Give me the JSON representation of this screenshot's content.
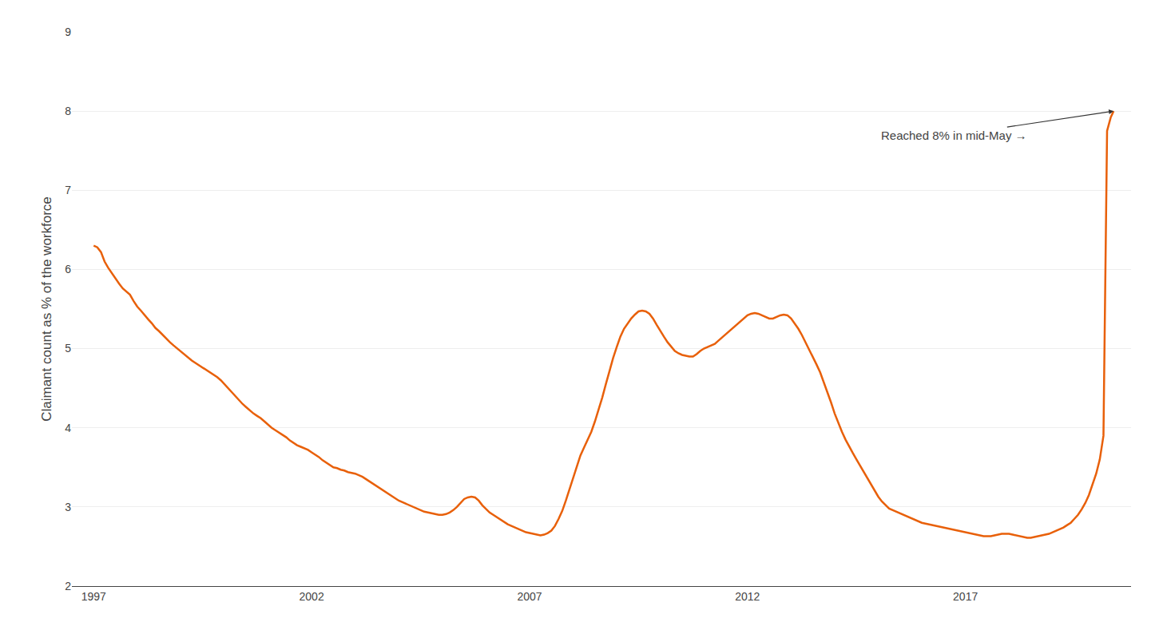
{
  "chart_data": {
    "type": "line",
    "ylabel": "Claimant count as % of the workforce",
    "color": "#E8600A",
    "grid": "y",
    "xlim": [
      1996.5,
      2020.8
    ],
    "xticks": [
      1997,
      2002,
      2007,
      2012,
      2017
    ],
    "ylim": [
      2,
      9
    ],
    "yticks": [
      2,
      3,
      4,
      5,
      6,
      7,
      8,
      9
    ],
    "annotations": [
      "Reached 8% in mid-May →"
    ],
    "x": [
      1997.0,
      1997.083,
      1997.167,
      1997.25,
      1997.333,
      1997.417,
      1997.5,
      1997.583,
      1997.667,
      1997.75,
      1997.833,
      1997.917,
      1998.0,
      1998.083,
      1998.167,
      1998.25,
      1998.333,
      1998.417,
      1998.5,
      1998.583,
      1998.667,
      1998.75,
      1998.833,
      1998.917,
      1999.0,
      1999.083,
      1999.167,
      1999.25,
      1999.333,
      1999.417,
      1999.5,
      1999.583,
      1999.667,
      1999.75,
      1999.833,
      1999.917,
      2000.0,
      2000.083,
      2000.167,
      2000.25,
      2000.333,
      2000.417,
      2000.5,
      2000.583,
      2000.667,
      2000.75,
      2000.833,
      2000.917,
      2001.0,
      2001.083,
      2001.167,
      2001.25,
      2001.333,
      2001.417,
      2001.5,
      2001.583,
      2001.667,
      2001.75,
      2001.833,
      2001.917,
      2002.0,
      2002.083,
      2002.167,
      2002.25,
      2002.333,
      2002.417,
      2002.5,
      2002.583,
      2002.667,
      2002.75,
      2002.833,
      2002.917,
      2003.0,
      2003.083,
      2003.167,
      2003.25,
      2003.333,
      2003.417,
      2003.5,
      2003.583,
      2003.667,
      2003.75,
      2003.833,
      2003.917,
      2004.0,
      2004.083,
      2004.167,
      2004.25,
      2004.333,
      2004.417,
      2004.5,
      2004.583,
      2004.667,
      2004.75,
      2004.833,
      2004.917,
      2005.0,
      2005.083,
      2005.167,
      2005.25,
      2005.333,
      2005.417,
      2005.5,
      2005.583,
      2005.667,
      2005.75,
      2005.833,
      2005.917,
      2006.0,
      2006.083,
      2006.167,
      2006.25,
      2006.333,
      2006.417,
      2006.5,
      2006.583,
      2006.667,
      2006.75,
      2006.833,
      2006.917,
      2007.0,
      2007.083,
      2007.167,
      2007.25,
      2007.333,
      2007.417,
      2007.5,
      2007.583,
      2007.667,
      2007.75,
      2007.833,
      2007.917,
      2008.0,
      2008.083,
      2008.167,
      2008.25,
      2008.333,
      2008.417,
      2008.5,
      2008.583,
      2008.667,
      2008.75,
      2008.833,
      2008.917,
      2009.0,
      2009.083,
      2009.167,
      2009.25,
      2009.333,
      2009.417,
      2009.5,
      2009.583,
      2009.667,
      2009.75,
      2009.833,
      2009.917,
      2010.0,
      2010.083,
      2010.167,
      2010.25,
      2010.333,
      2010.417,
      2010.5,
      2010.583,
      2010.667,
      2010.75,
      2010.833,
      2010.917,
      2011.0,
      2011.083,
      2011.167,
      2011.25,
      2011.333,
      2011.417,
      2011.5,
      2011.583,
      2011.667,
      2011.75,
      2011.833,
      2011.917,
      2012.0,
      2012.083,
      2012.167,
      2012.25,
      2012.333,
      2012.417,
      2012.5,
      2012.583,
      2012.667,
      2012.75,
      2012.833,
      2012.917,
      2013.0,
      2013.083,
      2013.167,
      2013.25,
      2013.333,
      2013.417,
      2013.5,
      2013.583,
      2013.667,
      2013.75,
      2013.833,
      2013.917,
      2014.0,
      2014.083,
      2014.167,
      2014.25,
      2014.333,
      2014.417,
      2014.5,
      2014.583,
      2014.667,
      2014.75,
      2014.833,
      2014.917,
      2015.0,
      2015.083,
      2015.167,
      2015.25,
      2015.333,
      2015.417,
      2015.5,
      2015.583,
      2015.667,
      2015.75,
      2015.833,
      2015.917,
      2016.0,
      2016.083,
      2016.167,
      2016.25,
      2016.333,
      2016.417,
      2016.5,
      2016.583,
      2016.667,
      2016.75,
      2016.833,
      2016.917,
      2017.0,
      2017.083,
      2017.167,
      2017.25,
      2017.333,
      2017.417,
      2017.5,
      2017.583,
      2017.667,
      2017.75,
      2017.833,
      2017.917,
      2018.0,
      2018.083,
      2018.167,
      2018.25,
      2018.333,
      2018.417,
      2018.5,
      2018.583,
      2018.667,
      2018.75,
      2018.833,
      2018.917,
      2019.0,
      2019.083,
      2019.167,
      2019.25,
      2019.333,
      2019.417,
      2019.5,
      2019.583,
      2019.667,
      2019.75,
      2019.833,
      2019.917,
      2020.0,
      2020.083,
      2020.167,
      2020.25,
      2020.333,
      2020.4
    ],
    "values": [
      6.3,
      6.28,
      6.22,
      6.1,
      6.02,
      5.95,
      5.88,
      5.82,
      5.76,
      5.72,
      5.68,
      5.6,
      5.53,
      5.48,
      5.42,
      5.37,
      5.32,
      5.26,
      5.22,
      5.17,
      5.13,
      5.08,
      5.04,
      5.0,
      4.96,
      4.92,
      4.88,
      4.85,
      4.82,
      4.79,
      4.76,
      4.73,
      4.7,
      4.67,
      4.64,
      4.6,
      4.55,
      4.5,
      4.45,
      4.4,
      4.35,
      4.3,
      4.26,
      4.22,
      4.18,
      4.15,
      4.12,
      4.08,
      4.04,
      4.0,
      3.97,
      3.94,
      3.91,
      3.88,
      3.84,
      3.81,
      3.78,
      3.76,
      3.74,
      3.72,
      3.69,
      3.66,
      3.63,
      3.59,
      3.56,
      3.53,
      3.5,
      3.49,
      3.47,
      3.46,
      3.44,
      3.43,
      3.42,
      3.4,
      3.38,
      3.35,
      3.32,
      3.29,
      3.26,
      3.23,
      3.2,
      3.17,
      3.14,
      3.11,
      3.08,
      3.06,
      3.04,
      3.02,
      3.0,
      2.98,
      2.96,
      2.94,
      2.93,
      2.92,
      2.91,
      2.9,
      2.9,
      2.91,
      2.93,
      2.96,
      3.0,
      3.05,
      3.1,
      3.12,
      3.13,
      3.12,
      3.08,
      3.02,
      2.97,
      2.93,
      2.9,
      2.87,
      2.84,
      2.81,
      2.78,
      2.76,
      2.74,
      2.72,
      2.7,
      2.68,
      2.67,
      2.66,
      2.65,
      2.64,
      2.65,
      2.67,
      2.7,
      2.76,
      2.85,
      2.95,
      3.08,
      3.22,
      3.38,
      3.52,
      3.65,
      3.75,
      3.85,
      3.95,
      4.08,
      4.22,
      4.38,
      4.55,
      4.72,
      4.88,
      5.02,
      5.15,
      5.25,
      5.32,
      5.38,
      5.43,
      5.47,
      5.48,
      5.47,
      5.44,
      5.38,
      5.3,
      5.22,
      5.15,
      5.08,
      5.02,
      4.97,
      4.94,
      4.92,
      4.91,
      4.9,
      4.9,
      4.93,
      4.97,
      5.0,
      5.02,
      5.04,
      5.06,
      5.1,
      5.14,
      5.18,
      5.22,
      5.26,
      5.3,
      5.34,
      5.38,
      5.42,
      5.44,
      5.45,
      5.44,
      5.42,
      5.4,
      5.38,
      5.38,
      5.4,
      5.42,
      5.43,
      5.42,
      5.38,
      5.32,
      5.25,
      5.17,
      5.08,
      4.99,
      4.9,
      4.8,
      4.7,
      4.58,
      4.46,
      4.32,
      4.18,
      4.06,
      3.95,
      3.85,
      3.76,
      3.68,
      3.6,
      3.52,
      3.44,
      3.36,
      3.28,
      3.2,
      3.13,
      3.07,
      3.02,
      2.98,
      2.96,
      2.94,
      2.92,
      2.9,
      2.88,
      2.86,
      2.84,
      2.82,
      2.8,
      2.79,
      2.78,
      2.77,
      2.76,
      2.75,
      2.74,
      2.73,
      2.72,
      2.71,
      2.7,
      2.69,
      2.68,
      2.67,
      2.66,
      2.65,
      2.64,
      2.63,
      2.63,
      2.63,
      2.64,
      2.65,
      2.66,
      2.66,
      2.66,
      2.65,
      2.64,
      2.63,
      2.62,
      2.61,
      2.61,
      2.62,
      2.63,
      2.64,
      2.65,
      2.66,
      2.68,
      2.7,
      2.72,
      2.74,
      2.77,
      2.8,
      2.85,
      2.9,
      2.97,
      3.05,
      3.15,
      3.28,
      3.42,
      3.6,
      3.9,
      7.75,
      7.92,
      8.0
    ]
  }
}
